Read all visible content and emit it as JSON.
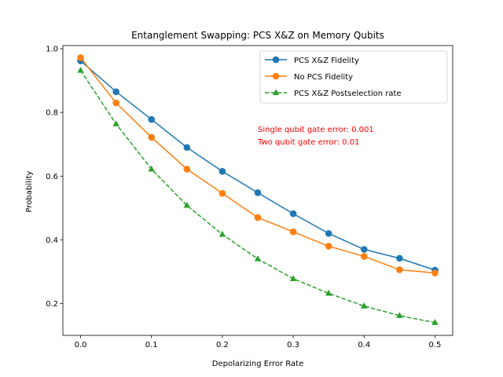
{
  "chart_data": {
    "type": "line",
    "title": "Entanglement Swapping: PCS X&Z on Memory Qubits",
    "xlabel": "Depolarizing Error Rate",
    "ylabel": "Probability",
    "xlim": [
      -0.025,
      0.525
    ],
    "ylim": [
      0.1,
      1.01
    ],
    "x_ticks": [
      0.0,
      0.1,
      0.2,
      0.3,
      0.4,
      0.5
    ],
    "x_tick_labels": [
      "0.0",
      "0.1",
      "0.2",
      "0.3",
      "0.4",
      "0.5"
    ],
    "y_ticks": [
      0.2,
      0.4,
      0.6,
      0.8,
      1.0
    ],
    "y_tick_labels": [
      "0.2",
      "0.4",
      "0.6",
      "0.8",
      "1.0"
    ],
    "grid": false,
    "legend_position": "top-right",
    "x": [
      0.0,
      0.05,
      0.1,
      0.15,
      0.2,
      0.25,
      0.3,
      0.35,
      0.4,
      0.45,
      0.5
    ],
    "series": [
      {
        "name": "PCS X&Z Fidelity",
        "color": "#1f77b4",
        "marker": "circle",
        "linestyle": "solid",
        "values": [
          0.962,
          0.865,
          0.778,
          0.69,
          0.615,
          0.548,
          0.482,
          0.42,
          0.37,
          0.342,
          0.305
        ]
      },
      {
        "name": "No PCS Fidelity",
        "color": "#ff7f0e",
        "marker": "circle",
        "linestyle": "solid",
        "values": [
          0.972,
          0.83,
          0.722,
          0.622,
          0.546,
          0.47,
          0.425,
          0.38,
          0.348,
          0.306,
          0.296
        ]
      },
      {
        "name": "PCS X&Z Postselection rate",
        "color": "#2ca02c",
        "marker": "triangle",
        "linestyle": "dashed",
        "values": [
          0.932,
          0.764,
          0.622,
          0.508,
          0.417,
          0.34,
          0.278,
          0.232,
          0.192,
          0.162,
          0.14
        ]
      }
    ],
    "annotations": [
      {
        "text": "Single qubit gate error: 0.001",
        "color": "#ff0000"
      },
      {
        "text": "Two qubit gate error: 0.01",
        "color": "#ff0000"
      }
    ]
  }
}
